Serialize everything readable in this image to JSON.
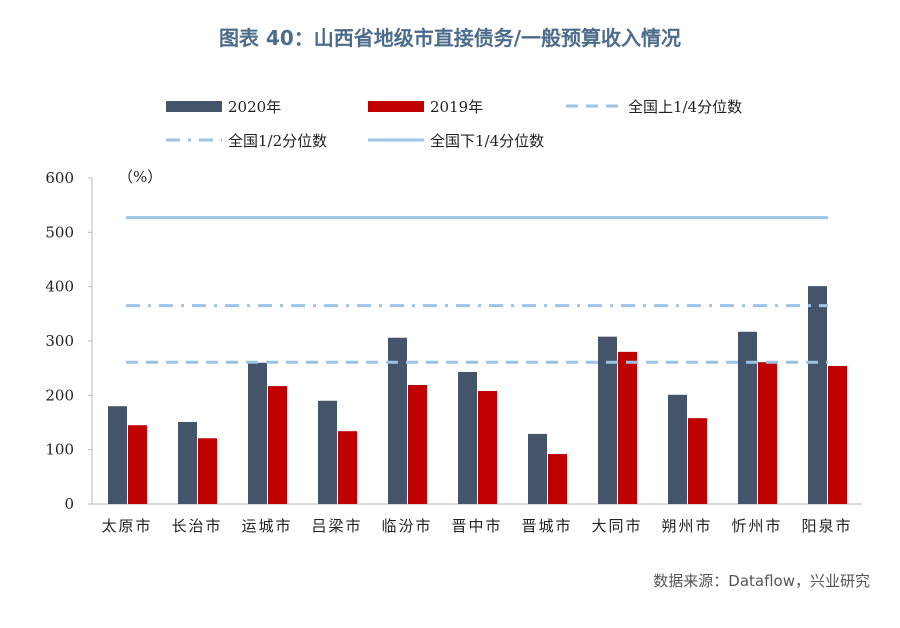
{
  "title": "图表 40：山西省地级市直接债务/一般预算收入情况",
  "source": "数据来源：Dataflow，兴业研究",
  "chart_data": {
    "type": "bar",
    "title": "图表 40：山西省地级市直接债务/一般预算收入情况",
    "ylabel": "（%）",
    "xlabel": "",
    "ylim": [
      0,
      600
    ],
    "yticks": [
      0,
      100,
      200,
      300,
      400,
      500,
      600
    ],
    "categories": [
      "太原市",
      "长治市",
      "运城市",
      "吕梁市",
      "临汾市",
      "晋中市",
      "晋城市",
      "大同市",
      "朔州市",
      "忻州市",
      "阳泉市"
    ],
    "series": [
      {
        "name": "2020年",
        "color": "#44546a",
        "values": [
          180,
          151,
          260,
          190,
          306,
          243,
          129,
          308,
          201,
          317,
          401
        ]
      },
      {
        "name": "2019年",
        "color": "#c00000",
        "values": [
          145,
          121,
          217,
          134,
          219,
          208,
          92,
          280,
          158,
          261,
          254
        ]
      }
    ],
    "reference_lines": [
      {
        "name": "全国上1/4分位数",
        "value": 261,
        "style": "dashed",
        "color": "#9dc3e6"
      },
      {
        "name": "全国1/2分位数",
        "value": 365,
        "style": "dashdot",
        "color": "#9dc3e6"
      },
      {
        "name": "全国下1/4分位数",
        "value": 527,
        "style": "solid",
        "color": "#9dc3e6"
      }
    ],
    "legend_position": "top",
    "grid": false
  }
}
